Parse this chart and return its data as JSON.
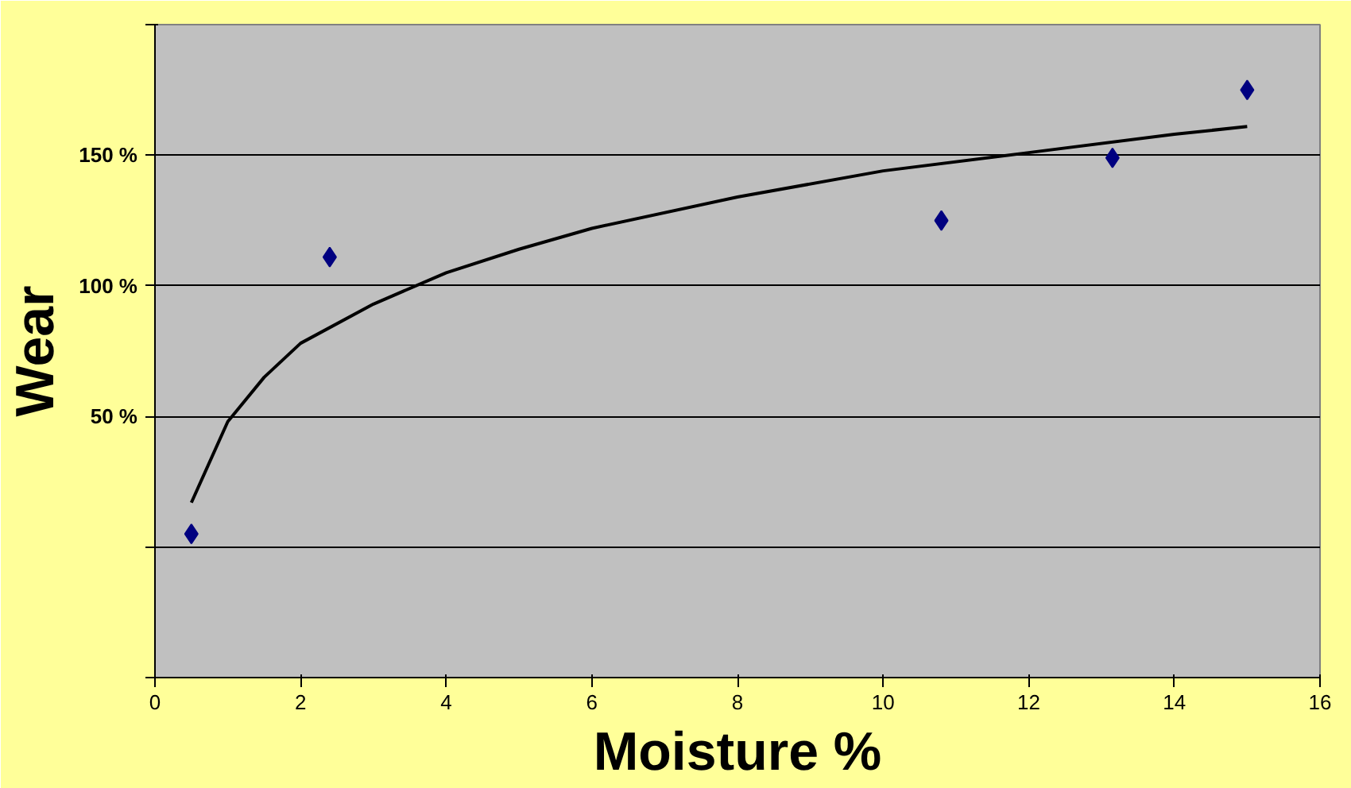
{
  "chart_data": {
    "type": "scatter",
    "xlabel": "Moisture %",
    "ylabel": "Wear",
    "xlim": [
      0,
      16
    ],
    "xticks": [
      0,
      2,
      4,
      6,
      8,
      10,
      12,
      14,
      16
    ],
    "ylim": [
      -50,
      200
    ],
    "yticks": [
      {
        "value": -50,
        "label": null
      },
      {
        "value": 0,
        "label": null
      },
      {
        "value": 50,
        "label": "50 %"
      },
      {
        "value": 100,
        "label": "100 %"
      },
      {
        "value": 150,
        "label": "150 %"
      },
      {
        "value": 200,
        "label": null
      }
    ],
    "grid": "y",
    "marker": "diamond",
    "series": [
      {
        "color": "#000080",
        "x": [
          0.5,
          2.4,
          10.8,
          13.15,
          15
        ],
        "values": [
          5,
          111,
          125,
          149,
          175
        ]
      },
      {
        "type": "line",
        "color": "#000000",
        "marker": "none",
        "line_style": "solid",
        "x": [
          0.5,
          1,
          1.5,
          2,
          3,
          4,
          5,
          6,
          8,
          10,
          12,
          14,
          15
        ],
        "values": [
          17,
          48,
          65,
          78,
          93,
          105,
          114,
          122,
          134,
          144,
          151,
          158,
          161
        ]
      }
    ]
  }
}
